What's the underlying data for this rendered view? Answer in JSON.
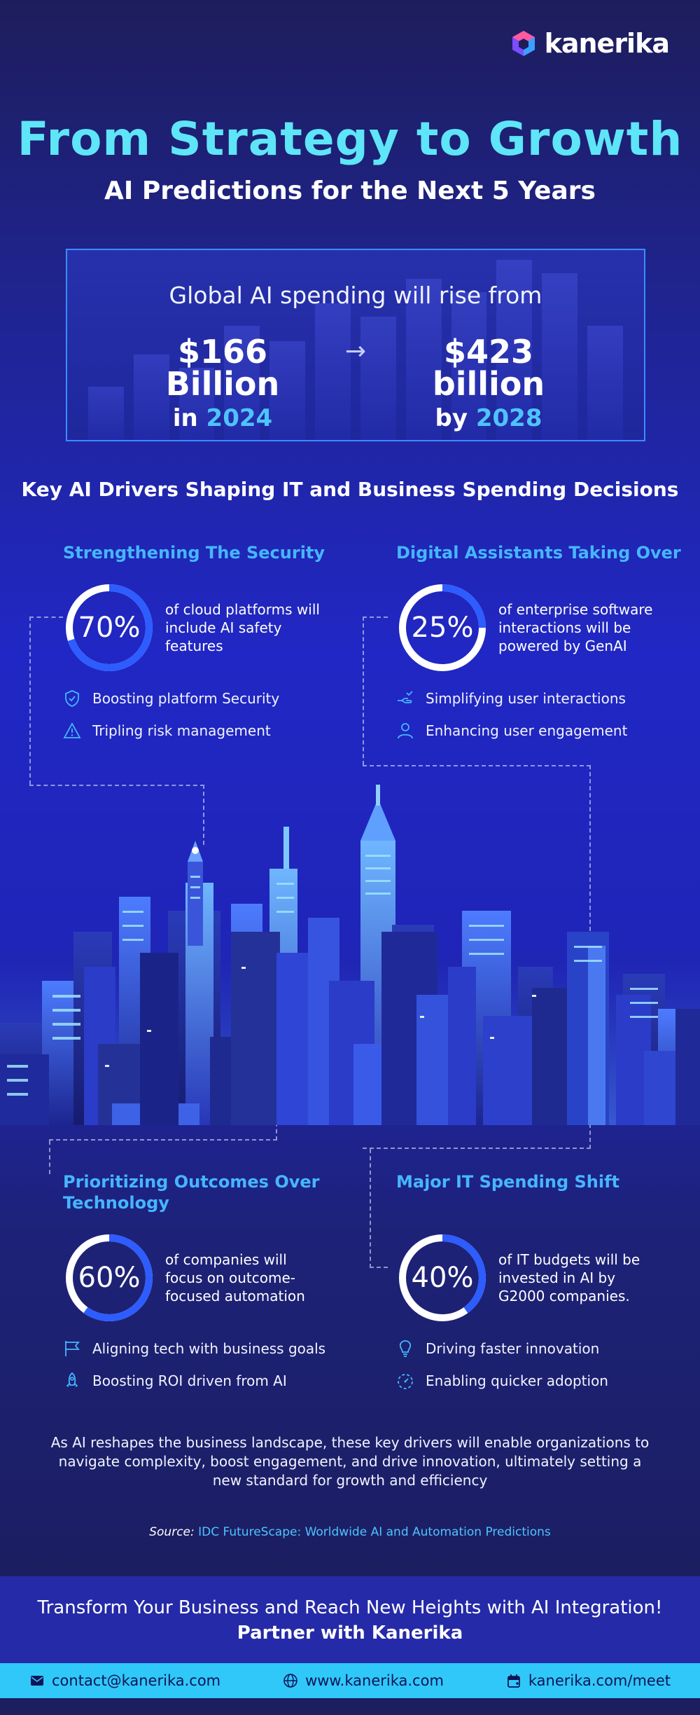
{
  "brand": {
    "name": "kanerika"
  },
  "header": {
    "title": "From Strategy to Growth",
    "subtitle": "AI Predictions for the Next 5 Years"
  },
  "spending": {
    "lead": "Global AI spending will rise from",
    "from_value": "$166 Billion",
    "from_prefix": "in",
    "from_year": "2024",
    "to_value": "$423 billion",
    "to_prefix": "by",
    "to_year": "2028"
  },
  "drivers_heading": "Key AI Drivers Shaping IT and Business Spending Decisions",
  "drivers": [
    {
      "title": "Strengthening The Security",
      "percent": 70,
      "percent_label": "70%",
      "stat_text": "of cloud platforms will include AI safety features",
      "bullets": [
        {
          "icon": "shield-icon",
          "text": "Boosting platform Security"
        },
        {
          "icon": "warning-icon",
          "text": "Tripling risk management"
        }
      ]
    },
    {
      "title": "Digital Assistants Taking Over",
      "percent": 25,
      "percent_label": "25%",
      "stat_text": "of enterprise software interactions will be powered by GenAI",
      "bullets": [
        {
          "icon": "hand-icon",
          "text": "Simplifying user interactions"
        },
        {
          "icon": "user-icon",
          "text": "Enhancing user engagement"
        }
      ]
    },
    {
      "title": "Prioritizing Outcomes Over Technology",
      "percent": 60,
      "percent_label": "60%",
      "stat_text": "of companies will focus on outcome-focused automation",
      "bullets": [
        {
          "icon": "flag-icon",
          "text": "Aligning tech with business goals"
        },
        {
          "icon": "rocket-icon",
          "text": "Boosting ROI driven from AI"
        }
      ]
    },
    {
      "title": "Major IT Spending Shift",
      "percent": 40,
      "percent_label": "40%",
      "stat_text": "of IT budgets will be invested in AI by G2000 companies.",
      "bullets": [
        {
          "icon": "lightbulb-icon",
          "text": "Driving faster innovation"
        },
        {
          "icon": "timer-icon",
          "text": "Enabling quicker adoption"
        }
      ]
    }
  ],
  "closing": "As AI reshapes the business landscape, these key drivers will enable organizations to navigate complexity, boost engagement, and drive innovation, ultimately setting a new standard for growth and efficiency",
  "source": {
    "label": "Source:",
    "text": "IDC FutureScape: Worldwide AI and Automation Predictions"
  },
  "cta": {
    "line1": "Transform Your Business and Reach New Heights with AI Integration!",
    "line2": "Partner with Kanerika"
  },
  "footer": {
    "email": "contact@kanerika.com",
    "website": "www.kanerika.com",
    "meet": "kanerika.com/meet"
  },
  "colors": {
    "accent_title": "#5ee5f7",
    "accent_blue": "#46b6ff",
    "footer_bg": "#2fc8f8",
    "ring_fill": "#2d5cff",
    "ring_track": "#ffffff"
  }
}
